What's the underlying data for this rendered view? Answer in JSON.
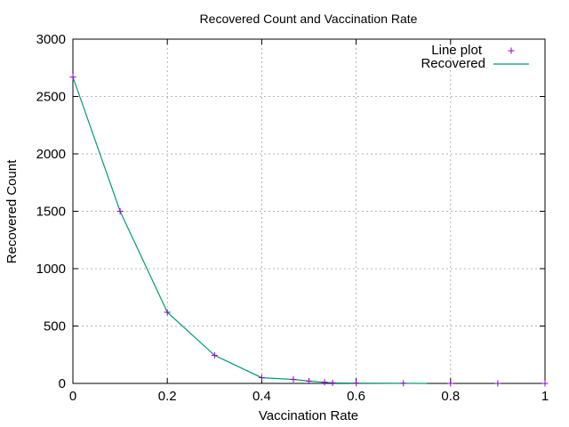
{
  "chart_data": {
    "type": "line",
    "title": "Recovered Count and Vaccination Rate",
    "xlabel": "Vaccination Rate",
    "ylabel": "Recovered Count",
    "xlim": [
      0,
      1
    ],
    "ylim": [
      0,
      3000
    ],
    "xticks": [
      0,
      0.2,
      0.4,
      0.6,
      0.8,
      1
    ],
    "xtick_labels": [
      "0",
      "0.2",
      "0.4",
      "0.6",
      "0.8",
      "1"
    ],
    "yticks": [
      0,
      500,
      1000,
      1500,
      2000,
      2500,
      3000
    ],
    "ytick_labels": [
      "0",
      "500",
      "1000",
      "1500",
      "2000",
      "2500",
      "3000"
    ],
    "grid": true,
    "legend_position": "top-right",
    "series": [
      {
        "name": "Line plot",
        "style": "points",
        "marker": "plus",
        "color": "#9400d3",
        "x": [
          0,
          0.1,
          0.2,
          0.3,
          0.4,
          0.467,
          0.5,
          0.533,
          0.55,
          0.6,
          0.7,
          0.8,
          0.9,
          1.0
        ],
        "y": [
          2670,
          1500,
          620,
          245,
          50,
          35,
          20,
          10,
          5,
          2,
          1,
          0,
          0,
          0
        ]
      },
      {
        "name": "Recovered",
        "style": "line",
        "color": "#009e73",
        "x": [
          0,
          0.1,
          0.2,
          0.3,
          0.4,
          0.467,
          0.5,
          0.533,
          0.55,
          0.6,
          0.7,
          0.75
        ],
        "y": [
          2670,
          1500,
          620,
          245,
          50,
          35,
          20,
          10,
          5,
          2,
          1,
          0
        ]
      }
    ]
  }
}
